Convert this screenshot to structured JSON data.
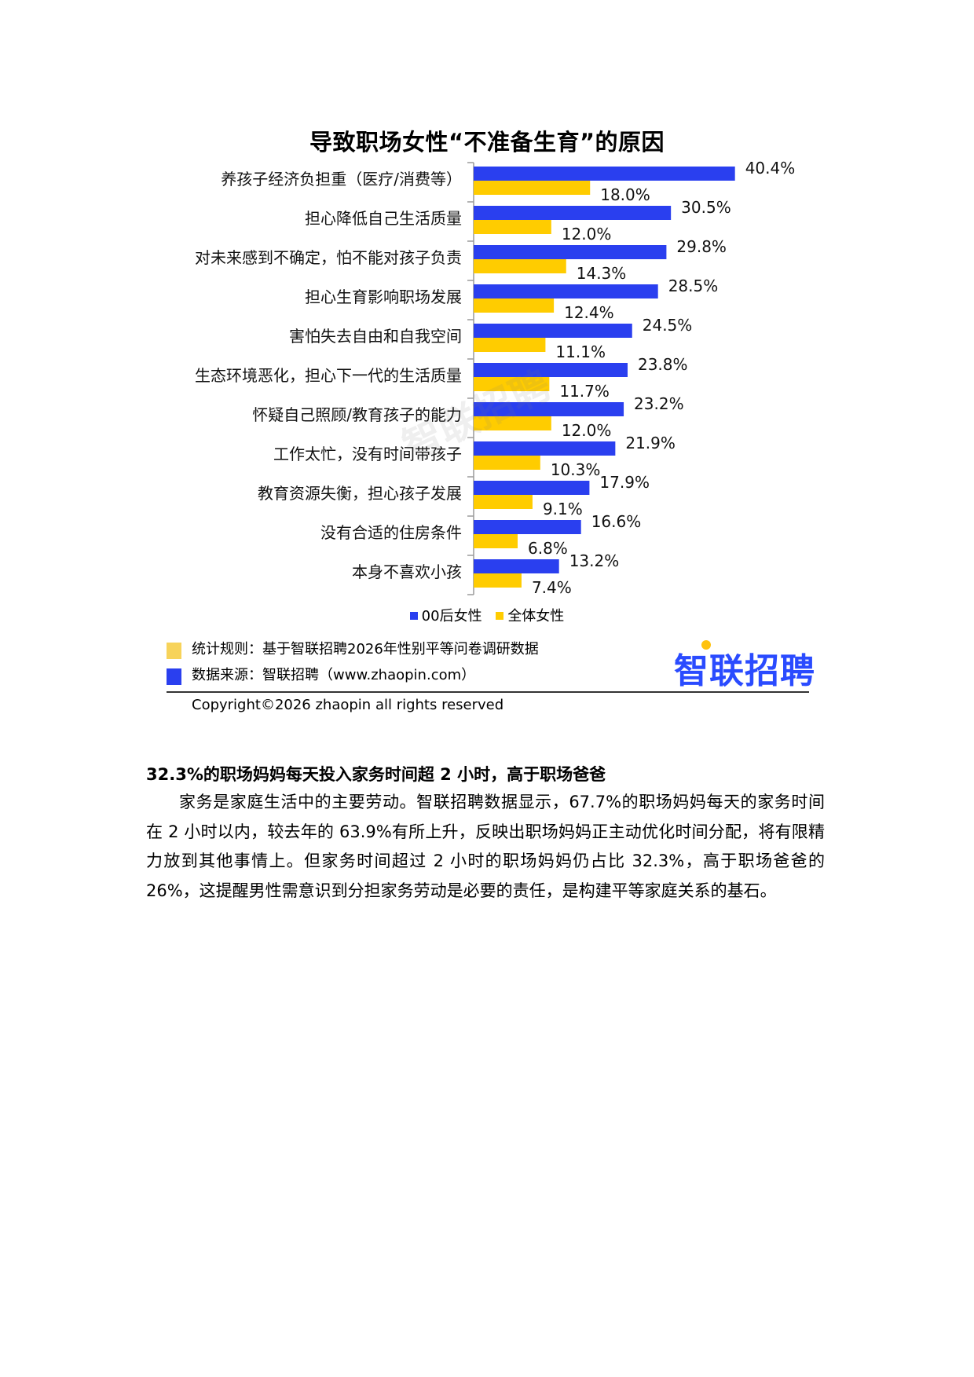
{
  "watermark": "智联招聘",
  "chart_data": {
    "type": "bar",
    "orientation": "horizontal",
    "title": "导致职场女性“不准备生育”的原因",
    "categories": [
      "养孩子经济负担重（医疗/消费等）",
      "担心降低自己生活质量",
      "对未来感到不确定，怕不能对孩子负责",
      "担心生育影响职场发展",
      "害怕失去自由和自我空间",
      "生态环境恶化，担心下一代的生活质量",
      "怀疑自己照顾/教育孩子的能力",
      "工作太忙，没有时间带孩子",
      "教育资源失衡，担心孩子发展",
      "没有合适的住房条件",
      "本身不喜欢小孩"
    ],
    "series": [
      {
        "name": "00后女性",
        "color": "#2a3fef",
        "values": [
          40.4,
          30.5,
          29.8,
          28.5,
          24.5,
          23.8,
          23.2,
          21.9,
          17.9,
          16.6,
          13.2
        ],
        "labels": [
          "40.4%",
          "30.5%",
          "29.8%",
          "28.5%",
          "24.5%",
          "23.8%",
          "23.2%",
          "21.9%",
          "17.9%",
          "16.6%",
          "13.2%"
        ]
      },
      {
        "name": "全体女性",
        "color": "#ffcc00",
        "values": [
          18.0,
          12.0,
          14.3,
          12.4,
          11.1,
          11.7,
          12.0,
          10.3,
          9.1,
          6.8,
          7.4
        ],
        "labels": [
          "18.0%",
          "12.0%",
          "14.3%",
          "12.4%",
          "11.1%",
          "11.7%",
          "12.0%",
          "10.3%",
          "9.1%",
          "6.8%",
          "7.4%"
        ]
      }
    ],
    "legend_position": "bottom",
    "grid": false
  },
  "notes": {
    "rule": "统计规则：基于智联招聘2026年性别平等问卷调研数据",
    "rule_color": "#f7d35a",
    "source": "数据来源：智联招聘（www.zhaopin.com）",
    "source_color": "#2a3fef"
  },
  "logo": "智联招聘",
  "copyright": "Copyright©2026 zhaopin all rights reserved",
  "section": {
    "heading": "32.3%的职场妈妈每天投入家务时间超 2 小时，高于职场爸爸",
    "body": "家务是家庭生活中的主要劳动。智联招聘数据显示，67.7%的职场妈妈每天的家务时间在 2 小时以内，较去年的 63.9%有所上升，反映出职场妈妈正主动优化时间分配，将有限精力放到其他事情上。但家务时间超过 2 小时的职场妈妈仍占比 32.3%，高于职场爸爸的 26%，这提醒男性需意识到分担家务劳动是必要的责任，是构建平等家庭关系的基石。"
  }
}
